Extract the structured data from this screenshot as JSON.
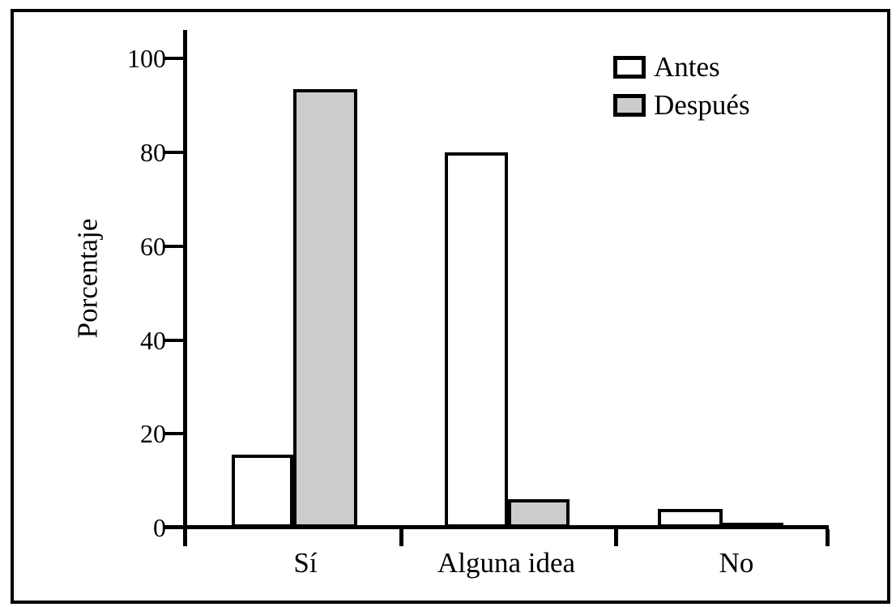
{
  "chart_data": {
    "type": "bar",
    "title": "",
    "categories": [
      "Sí",
      "Alguna idea",
      "No"
    ],
    "series": [
      {
        "name": "Antes",
        "color": "#ffffff",
        "values": [
          15.5,
          80,
          4
        ]
      },
      {
        "name": "Después",
        "color": "#cccccc",
        "values": [
          93.5,
          6,
          0.5
        ]
      }
    ],
    "xlabel": "",
    "ylabel": "Porcentaje",
    "yticks": [
      0,
      20,
      40,
      60,
      80,
      100
    ],
    "ylim": [
      0,
      100
    ],
    "grid": false,
    "legend_position": "top-right",
    "bar_border_color": "#000000",
    "frame_color": "#000000",
    "background_color": "#ffffff"
  }
}
